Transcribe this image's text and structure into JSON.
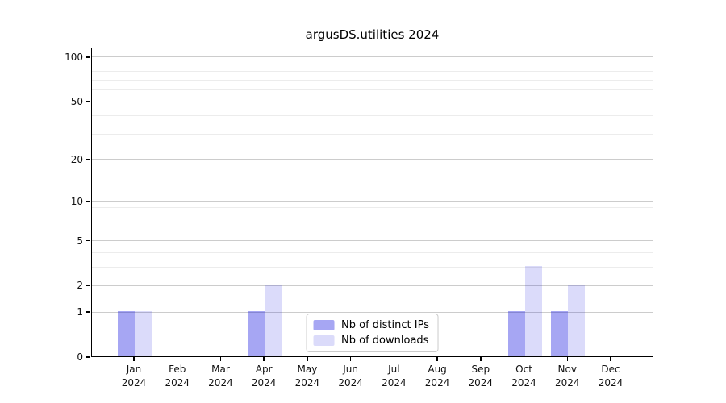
{
  "chart_data": {
    "type": "bar",
    "title": "argusDS.utilities 2024",
    "categories": [
      "Jan",
      "Feb",
      "Mar",
      "Apr",
      "May",
      "Jun",
      "Jul",
      "Aug",
      "Sep",
      "Oct",
      "Nov",
      "Dec"
    ],
    "category_sublabel": "2024",
    "series": [
      {
        "name": "Nb of distinct IPs",
        "color_hex": "#0000dd",
        "alpha": 0.35,
        "values": [
          1,
          0,
          0,
          1,
          0,
          0,
          0,
          0,
          0,
          1,
          1,
          0
        ]
      },
      {
        "name": "Nb of downloads",
        "color_hex": "#0000dd",
        "alpha": 0.14,
        "values": [
          1,
          0,
          0,
          2,
          0,
          0,
          0,
          0,
          0,
          3,
          2,
          0
        ]
      }
    ],
    "yscale": "log1p",
    "ylim": [
      0,
      100
    ],
    "yticks_major": [
      0,
      1,
      2,
      5,
      10,
      20,
      50,
      100
    ],
    "yticks_minor": [
      3,
      4,
      6,
      7,
      8,
      9,
      30,
      40,
      60,
      70,
      80,
      90
    ],
    "grid": true,
    "legend_position": "lower center",
    "colors": {
      "spine": "#000000",
      "grid_major": "#cccccc",
      "grid_minor": "#ececec",
      "tick_label": "#111111",
      "legend_border": "#cbcbcb"
    }
  }
}
